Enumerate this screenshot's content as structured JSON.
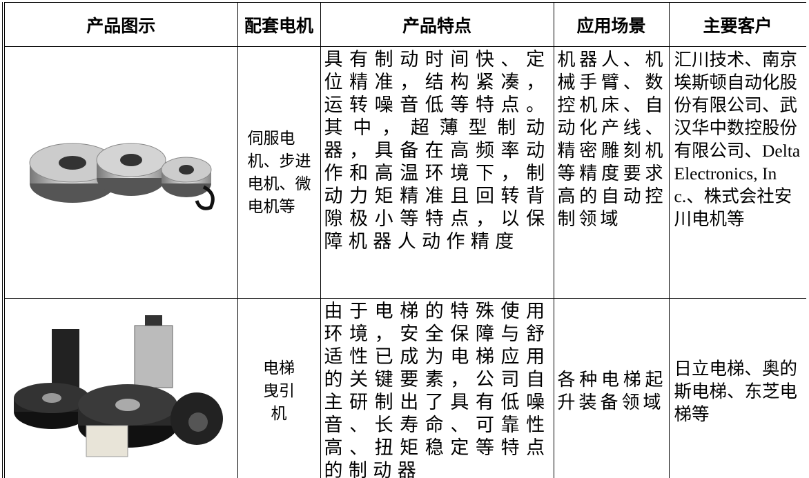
{
  "table": {
    "header": [
      "产品图示",
      "配套电机",
      "产品特点",
      "应用场景",
      "主要客户"
    ],
    "rows": [
      {
        "motor": "伺服电机、步进电机、微电机等",
        "features": "具有制动时间快、定位精准，结构紧凑，运转噪音低等特点。其中，超薄型制动器，具备在高频率动作和高温环境下，制动力矩精准且回转背隙极小等特点，以保障机器人动作精度",
        "applications": "机器人、机械手臂、数控机床、自动化产线、精密雕刻机等精度要求高的自动控制领域",
        "customers": "汇川技术、南京埃斯顿自动化股份有限公司、武汉华中数控股份有限公司、Delta Electronics, Inc.、株式会社安川电机等"
      },
      {
        "motor": "电梯曳引机",
        "features": "由于电梯的特殊使用环境，安全保障与舒适性已成为电梯应用的关键要素，公司自主研制出了具有低噪音、长寿命、可靠性高、扭矩稳定等特点的制动器",
        "applications": "各种电梯起升装备领域",
        "customers": "日立电梯、奥的斯电梯、东芝电梯等"
      }
    ]
  }
}
